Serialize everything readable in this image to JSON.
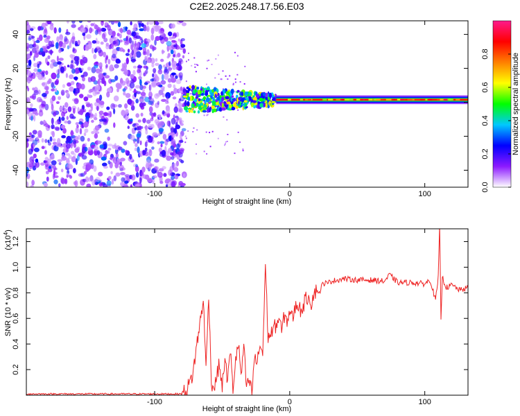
{
  "figure": {
    "title": "C2E2.2025.248.17.56.E03"
  },
  "chart_data": [
    {
      "type": "heatmap",
      "title": "",
      "xlabel": "Height of straight line (km)",
      "ylabel": "Frequency (Hz)",
      "xlim": [
        -195,
        132
      ],
      "ylim": [
        -50,
        48
      ],
      "x_ticks": [
        -100,
        0,
        100
      ],
      "x_tick_labels": [
        "-100",
        "0",
        "100"
      ],
      "y_ticks": [
        -40,
        -20,
        0,
        20,
        40
      ],
      "y_tick_labels": [
        "-40",
        "-20",
        "0",
        "20",
        "40"
      ],
      "colorbar": {
        "label": "Normalized spectral amplitude",
        "range": [
          0,
          1
        ],
        "ticks": [
          0.0,
          0.2,
          0.4,
          0.6,
          0.8
        ],
        "tick_labels": [
          "0.0",
          "0.2",
          "0.4",
          "0.6",
          "0.8"
        ],
        "colors": [
          "#ffffff",
          "#8c1aff",
          "#0000ff",
          "#00c8ff",
          "#00ff00",
          "#ffff00",
          "#ff8000",
          "#ff0000",
          "#ff1a8c"
        ]
      },
      "regions": [
        {
          "name": "noise",
          "x_range": [
            -195,
            -78
          ],
          "freq_range": [
            -50,
            48
          ],
          "typical_amplitude": 0.2
        },
        {
          "name": "transition",
          "x_range": [
            -78,
            -10
          ],
          "freq_center": 1.5,
          "freq_halfwidth": 8,
          "typical_amplitude": 0.45
        },
        {
          "name": "line",
          "x_range": [
            -10,
            132
          ],
          "freq_center": 1.5,
          "freq_halfwidth": 1.5,
          "typical_amplitude": 0.85
        }
      ]
    },
    {
      "type": "line",
      "title": "",
      "xlabel": "Height of straight line (km)",
      "ylabel": "SNR (10 * v/v)",
      "scale_label": "(x10",
      "scale_exponent": "4",
      "scale_suffix": ")",
      "xlim": [
        -195,
        132
      ],
      "ylim": [
        0,
        1.3
      ],
      "x_ticks": [
        -100,
        0,
        100
      ],
      "x_tick_labels": [
        "-100",
        "0",
        "100"
      ],
      "y_ticks": [
        0.2,
        0.4,
        0.6,
        0.8,
        1.0,
        1.2
      ],
      "y_tick_labels": [
        "0.2",
        "0.4",
        "0.6",
        "0.8",
        "1.0",
        "1.2"
      ],
      "color": "#ee2222",
      "series": [
        {
          "name": "SNR",
          "x": [
            -195,
            -80,
            -76,
            -72,
            -68,
            -64,
            -62,
            -60,
            -58,
            -56,
            -54,
            -52,
            -50,
            -48,
            -46,
            -44,
            -42,
            -40,
            -38,
            -36,
            -34,
            -32,
            -30,
            -28,
            -26,
            -24,
            -22,
            -20,
            -18,
            -16,
            -14,
            -12,
            -10,
            -8,
            -6,
            -4,
            -2,
            0,
            2,
            4,
            6,
            8,
            10,
            12,
            14,
            16,
            18,
            20,
            22,
            24,
            26,
            28,
            30,
            40,
            50,
            60,
            70,
            74,
            80,
            90,
            100,
            104,
            108,
            110,
            111,
            112,
            113,
            116,
            120,
            126,
            132
          ],
          "y": [
            0.01,
            0.01,
            0.05,
            0.15,
            0.45,
            0.75,
            0.2,
            0.8,
            0.1,
            0.05,
            0.15,
            0.25,
            0.05,
            0.3,
            0.1,
            0.35,
            0.05,
            0.28,
            0.4,
            0.15,
            0.38,
            0.05,
            0.12,
            0.02,
            0.3,
            0.25,
            0.4,
            0.32,
            1.02,
            0.45,
            0.48,
            0.52,
            0.55,
            0.6,
            0.5,
            0.62,
            0.58,
            0.66,
            0.6,
            0.68,
            0.72,
            0.66,
            0.7,
            0.75,
            0.78,
            0.72,
            0.8,
            0.82,
            0.8,
            0.86,
            0.88,
            0.87,
            0.89,
            0.91,
            0.9,
            0.9,
            0.89,
            0.94,
            0.88,
            0.88,
            0.87,
            0.9,
            0.74,
            0.92,
            1.31,
            0.6,
            0.92,
            0.84,
            0.86,
            0.82,
            0.84
          ]
        }
      ]
    }
  ]
}
